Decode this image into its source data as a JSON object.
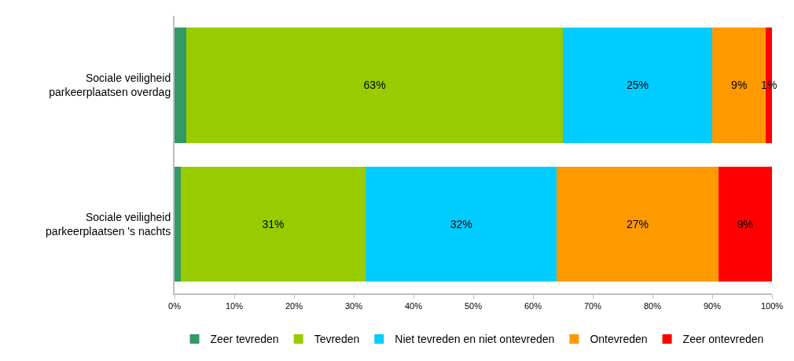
{
  "chart_data": {
    "type": "bar",
    "orientation": "horizontal",
    "stacked": true,
    "categories": [
      "Sociale veiligheid\nparkeerplaatsen overdag",
      "Sociale veiligheid\nparkeerplaatsen 's nachts"
    ],
    "series": [
      {
        "name": "Zeer tevreden",
        "color": "#339966",
        "values": [
          2,
          1
        ]
      },
      {
        "name": "Tevreden",
        "color": "#99cc00",
        "values": [
          63,
          31
        ],
        "value_labels": [
          "63%",
          "31%"
        ]
      },
      {
        "name": "Niet tevreden en niet ontevreden",
        "color": "#00ccff",
        "values": [
          25,
          32
        ],
        "value_labels": [
          "25%",
          "32%"
        ]
      },
      {
        "name": "Ontevreden",
        "color": "#ff9900",
        "values": [
          9,
          27
        ],
        "value_labels": [
          "9%",
          "27%"
        ]
      },
      {
        "name": "Zeer ontevreden",
        "color": "#ff0000",
        "values": [
          1,
          9
        ],
        "value_labels": [
          "1%",
          "9%"
        ]
      }
    ],
    "xlim": [
      0,
      100
    ],
    "xticks": [
      {
        "value": 0,
        "label": "0%"
      },
      {
        "value": 10,
        "label": "10%"
      },
      {
        "value": 20,
        "label": "20%"
      },
      {
        "value": 30,
        "label": "30%"
      },
      {
        "value": 40,
        "label": "40%"
      },
      {
        "value": 50,
        "label": "50%"
      },
      {
        "value": 60,
        "label": "60%"
      },
      {
        "value": 70,
        "label": "70%"
      },
      {
        "value": 80,
        "label": "80%"
      },
      {
        "value": 90,
        "label": "90%"
      },
      {
        "value": 100,
        "label": "100%"
      }
    ],
    "legend": "bottom"
  }
}
